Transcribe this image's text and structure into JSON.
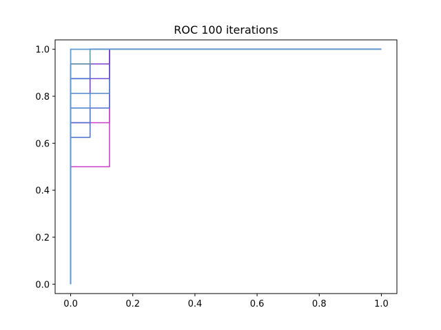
{
  "chart_data": {
    "type": "line",
    "title": "ROC 100 iterations",
    "xlabel": "",
    "ylabel": "",
    "xlim": [
      -0.05,
      1.05
    ],
    "ylim": [
      -0.04,
      1.04
    ],
    "x_ticks": [
      0.0,
      0.2,
      0.4,
      0.6,
      0.8,
      1.0
    ],
    "x_tick_labels": [
      "0.0",
      "0.2",
      "0.4",
      "0.6",
      "0.8",
      "1.0"
    ],
    "y_ticks": [
      0.0,
      0.2,
      0.4,
      0.6,
      0.8,
      1.0
    ],
    "y_tick_labels": [
      "0.0",
      "0.2",
      "0.4",
      "0.6",
      "0.8",
      "1.0"
    ],
    "grid": false,
    "legend": "none",
    "series": [
      {
        "color": "#c73cc6",
        "x": [
          0,
          0,
          0.125,
          0.125,
          1
        ],
        "y": [
          0,
          0.5,
          0.5,
          1,
          1
        ]
      },
      {
        "color": "#c73cc6",
        "x": [
          0,
          0,
          0.125,
          0.125,
          1
        ],
        "y": [
          0,
          0.6875,
          0.6875,
          1,
          1
        ]
      },
      {
        "color": "#4a6fcf",
        "x": [
          0,
          0,
          0.0625,
          0.0625,
          1
        ],
        "y": [
          0,
          0.625,
          0.625,
          1,
          1
        ]
      },
      {
        "color": "#4a6fcf",
        "x": [
          0,
          0,
          0.0625,
          0.0625,
          1
        ],
        "y": [
          0,
          0.6875,
          0.6875,
          1,
          1
        ]
      },
      {
        "color": "#4b6fd0",
        "x": [
          0,
          0,
          0.125,
          0.125,
          1
        ],
        "y": [
          0,
          0.75,
          0.75,
          1,
          1
        ]
      },
      {
        "color": "#5b8ed3",
        "x": [
          0,
          0,
          0.0625,
          0.0625,
          1
        ],
        "y": [
          0,
          0.75,
          0.75,
          1,
          1
        ]
      },
      {
        "color": "#7a3fd0",
        "x": [
          0,
          0,
          0.0625,
          0.0625,
          1
        ],
        "y": [
          0,
          0.8125,
          0.8125,
          1,
          1
        ]
      },
      {
        "color": "#4f86cc",
        "x": [
          0,
          0,
          0.125,
          0.125,
          1
        ],
        "y": [
          0,
          0.8125,
          0.8125,
          1,
          1
        ]
      },
      {
        "color": "#6a4fd2",
        "x": [
          0,
          0,
          0.125,
          0.125,
          1
        ],
        "y": [
          0,
          0.875,
          0.875,
          1,
          1
        ]
      },
      {
        "color": "#4a6fcf",
        "x": [
          0,
          0,
          0.0625,
          0.0625,
          1
        ],
        "y": [
          0,
          0.875,
          0.875,
          1,
          1
        ]
      },
      {
        "color": "#7a3fd0",
        "x": [
          0,
          0,
          0.125,
          0.125,
          1
        ],
        "y": [
          0,
          0.9375,
          0.9375,
          1,
          1
        ]
      },
      {
        "color": "#5f9ea0",
        "x": [
          0,
          0,
          0.0625,
          0.0625,
          1
        ],
        "y": [
          0,
          0.9375,
          0.9375,
          1,
          1
        ]
      },
      {
        "color": "#5b8fc9",
        "x": [
          0,
          0,
          0.0625,
          0.0625,
          1
        ],
        "y": [
          0,
          1,
          1,
          1,
          1
        ]
      },
      {
        "color": "#5b9bd5",
        "x": [
          0,
          0,
          1
        ],
        "y": [
          0,
          1,
          1
        ]
      }
    ]
  }
}
